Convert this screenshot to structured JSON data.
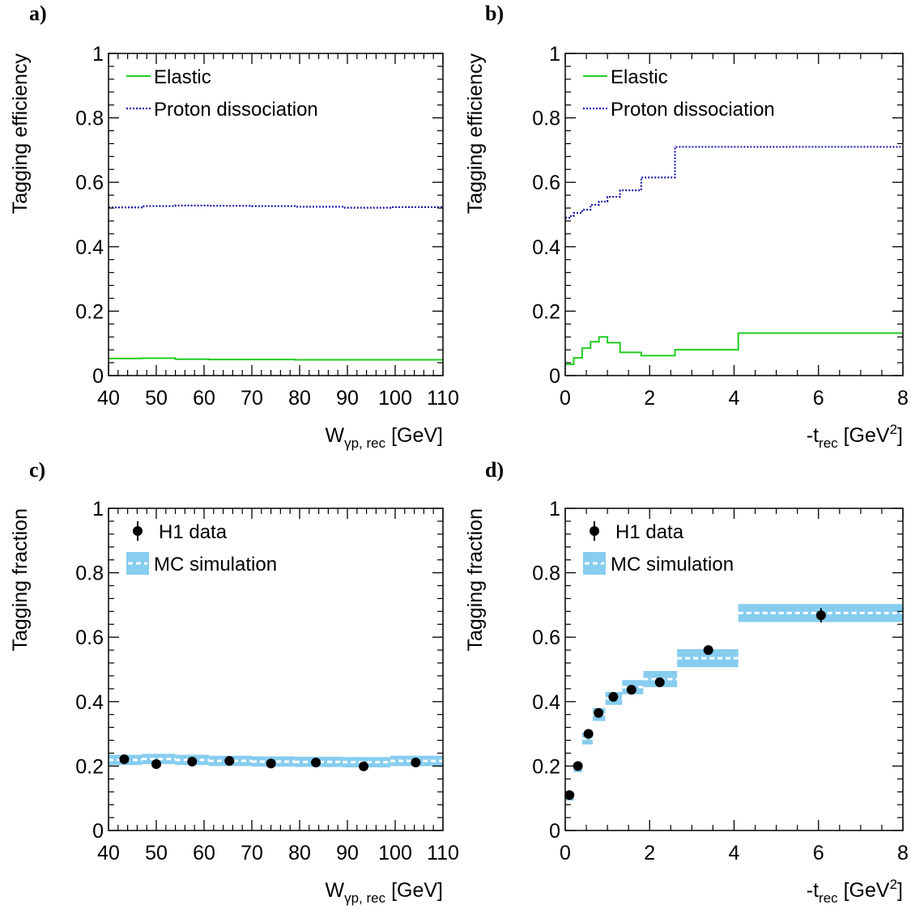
{
  "panels": [
    {
      "letter": "a)",
      "ylabel": "Tagging efficiency",
      "xlabel_main": "W",
      "xlabel_sub": "γp, rec",
      "xlabel_tail": " [GeV]"
    },
    {
      "letter": "b)",
      "ylabel": "Tagging efficiency",
      "xlabel_main": "-t",
      "xlabel_sub": "rec",
      "xlabel_tail": " [GeV",
      "xlabel_sup": "2",
      "xlabel_end": "]"
    },
    {
      "letter": "c)",
      "ylabel": "Tagging fraction",
      "xlabel_main": "W",
      "xlabel_sub": "γp, rec",
      "xlabel_tail": " [GeV]"
    },
    {
      "letter": "d)",
      "ylabel": "Tagging fraction",
      "xlabel_main": "-t",
      "xlabel_sub": "rec",
      "xlabel_tail": " [GeV",
      "xlabel_sup": "2",
      "xlabel_end": "]"
    }
  ],
  "colors": {
    "elastic": "#22cc22",
    "pdiss": "#1a1aaa",
    "mc_band": "#87cdef",
    "mc_line": "#ffffff",
    "data": "#000000"
  },
  "chart_data": [
    {
      "type": "line",
      "panel": "a)",
      "xlim": [
        40,
        110
      ],
      "ylim": [
        0,
        1
      ],
      "xticks": [
        40,
        50,
        60,
        70,
        80,
        90,
        100,
        110
      ],
      "yticks": [
        0,
        0.2,
        0.4,
        0.6,
        0.8,
        1
      ],
      "xticklabels": [
        "40",
        "50",
        "60",
        "70",
        "80",
        "90",
        "100",
        "110"
      ],
      "yticklabels": [
        "0",
        "0.2",
        "0.4",
        "0.6",
        "0.8",
        "1"
      ],
      "xlabel": "W_{γp, rec} [GeV]",
      "ylabel": "Tagging efficiency",
      "legend": "top-left",
      "series": [
        {
          "name": "Elastic",
          "style": "solid",
          "color": "#22cc22",
          "bins": [
            40,
            47,
            54,
            61,
            70,
            79,
            89,
            99,
            110
          ],
          "values": [
            0.053,
            0.054,
            0.051,
            0.05,
            0.05,
            0.049,
            0.049,
            0.049
          ]
        },
        {
          "name": "Proton dissociation",
          "style": "dotted",
          "color": "#1a1aaa",
          "bins": [
            40,
            47,
            54,
            61,
            70,
            79,
            89,
            99,
            110
          ],
          "values": [
            0.522,
            0.526,
            0.528,
            0.527,
            0.526,
            0.524,
            0.521,
            0.523
          ]
        }
      ]
    },
    {
      "type": "line",
      "panel": "b)",
      "xlim": [
        0,
        8
      ],
      "ylim": [
        0,
        1
      ],
      "xticks": [
        0,
        2,
        4,
        6,
        8
      ],
      "yticks": [
        0,
        0.2,
        0.4,
        0.6,
        0.8,
        1
      ],
      "xticklabels": [
        "0",
        "2",
        "4",
        "6",
        "8"
      ],
      "yticklabels": [
        "0",
        "0.2",
        "0.4",
        "0.6",
        "0.8",
        "1"
      ],
      "xlabel": "-t_{rec} [GeV^2]",
      "ylabel": "Tagging efficiency",
      "legend": "top-left",
      "series": [
        {
          "name": "Elastic",
          "style": "solid",
          "color": "#22cc22",
          "bins": [
            0,
            0.2,
            0.4,
            0.6,
            0.8,
            1.0,
            1.3,
            1.8,
            2.6,
            4.1,
            8.0
          ],
          "values": [
            0.035,
            0.055,
            0.085,
            0.105,
            0.12,
            0.102,
            0.072,
            0.062,
            0.08,
            0.132
          ]
        },
        {
          "name": "Proton dissociation",
          "style": "dotted",
          "color": "#1a1aaa",
          "bins": [
            0,
            0.1,
            0.2,
            0.4,
            0.6,
            0.8,
            1.0,
            1.3,
            1.8,
            2.6,
            4.1,
            8.0
          ],
          "values": [
            0.49,
            0.495,
            0.505,
            0.515,
            0.53,
            0.54,
            0.555,
            0.575,
            0.615,
            0.71,
            0.71
          ]
        }
      ]
    },
    {
      "type": "scatter",
      "panel": "c)",
      "xlim": [
        40,
        110
      ],
      "ylim": [
        0,
        1
      ],
      "xticks": [
        40,
        50,
        60,
        70,
        80,
        90,
        100,
        110
      ],
      "yticks": [
        0,
        0.2,
        0.4,
        0.6,
        0.8,
        1
      ],
      "xticklabels": [
        "40",
        "50",
        "60",
        "70",
        "80",
        "90",
        "100",
        "110"
      ],
      "yticklabels": [
        "0",
        "0.2",
        "0.4",
        "0.6",
        "0.8",
        "1"
      ],
      "xlabel": "W_{γp, rec} [GeV]",
      "ylabel": "Tagging fraction",
      "legend": "top-left",
      "data": {
        "name": "H1 data",
        "x": [
          43.3,
          50.0,
          57.5,
          65.3,
          74.0,
          83.4,
          93.4,
          104.3
        ],
        "y": [
          0.221,
          0.206,
          0.214,
          0.216,
          0.208,
          0.211,
          0.199,
          0.211
        ],
        "yerr": [
          0.007,
          0.007,
          0.007,
          0.007,
          0.007,
          0.007,
          0.007,
          0.007
        ]
      },
      "mc": {
        "name": "MC simulation",
        "bins": [
          40,
          47,
          54,
          61,
          70,
          79,
          89,
          99,
          110
        ],
        "values": [
          0.219,
          0.222,
          0.219,
          0.216,
          0.214,
          0.213,
          0.212,
          0.216
        ],
        "err": [
          0.016,
          0.016,
          0.016,
          0.016,
          0.016,
          0.016,
          0.016,
          0.016
        ]
      }
    },
    {
      "type": "scatter",
      "panel": "d)",
      "xlim": [
        0,
        8
      ],
      "ylim": [
        0,
        1
      ],
      "xticks": [
        0,
        2,
        4,
        6,
        8
      ],
      "yticks": [
        0,
        0.2,
        0.4,
        0.6,
        0.8,
        1
      ],
      "xticklabels": [
        "0",
        "2",
        "4",
        "6",
        "8"
      ],
      "yticklabels": [
        "0",
        "0.2",
        "0.4",
        "0.6",
        "0.8",
        "1"
      ],
      "xlabel": "-t_{rec} [GeV^2]",
      "ylabel": "Tagging fraction",
      "legend": "top-left",
      "data": {
        "name": "H1 data",
        "x": [
          0.1,
          0.3,
          0.55,
          0.79,
          1.14,
          1.57,
          2.24,
          3.39,
          6.06
        ],
        "y": [
          0.11,
          0.2,
          0.3,
          0.365,
          0.415,
          0.437,
          0.46,
          0.56,
          0.668
        ],
        "yerr": [
          0.006,
          0.007,
          0.009,
          0.01,
          0.01,
          0.01,
          0.011,
          0.014,
          0.022
        ]
      },
      "mc": {
        "name": "MC simulation",
        "bins": [
          0,
          0.2,
          0.4,
          0.65,
          0.95,
          1.35,
          1.85,
          2.65,
          4.1,
          8.0
        ],
        "values": [
          0.105,
          0.195,
          0.285,
          0.36,
          0.41,
          0.445,
          0.47,
          0.535,
          0.675
        ],
        "err": [
          0.012,
          0.014,
          0.018,
          0.02,
          0.02,
          0.022,
          0.025,
          0.028,
          0.028
        ]
      }
    }
  ]
}
